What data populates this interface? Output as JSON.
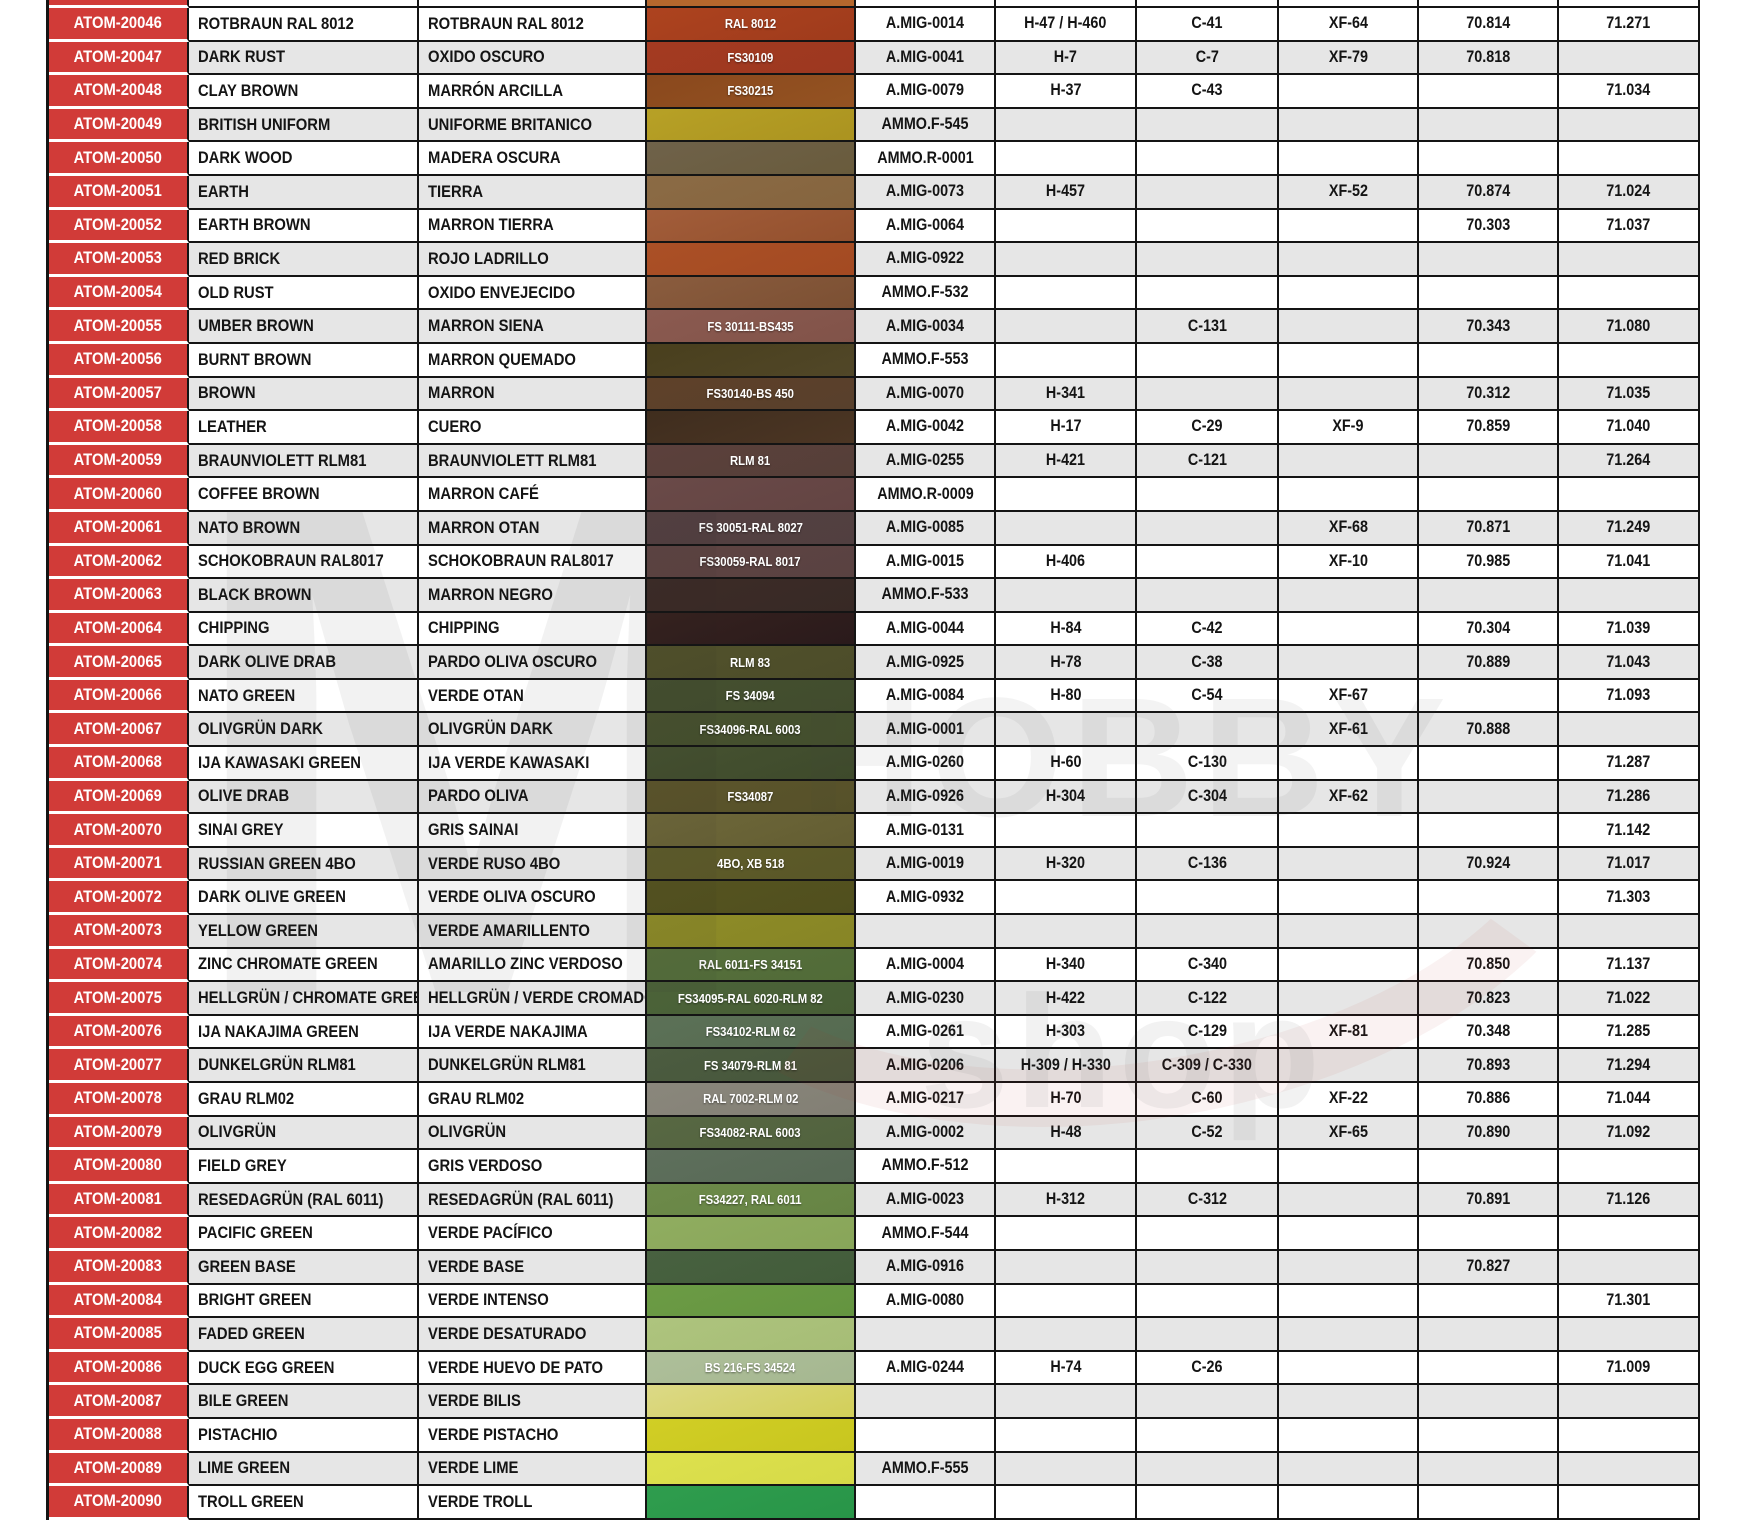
{
  "accent": {
    "code_red": "#d13b38",
    "row_white": "#ffffff",
    "row_gray": "#e6e6e6",
    "border_dark": "#141414",
    "text_dark": "#141414",
    "swatch_text": "#ffffff",
    "partial_top_swatch": "#b5672d"
  },
  "watermark": {
    "letter": "M",
    "word1": "HOBBY",
    "word2": "shop"
  },
  "table": {
    "rows": [
      {
        "code": "ATOM-20046",
        "en": "ROTBRAUN RAL 8012",
        "es": "ROTBRAUN RAL 8012",
        "ref": "RAL 8012",
        "c1": "#ad431f",
        "c2": "#9f3b1c",
        "amig": "A.MIG-0014",
        "h": "H-47 / H-460",
        "c": "C-41",
        "xf": "XF-64",
        "v70": "70.814",
        "v71": "71.271"
      },
      {
        "code": "ATOM-20047",
        "en": "DARK RUST",
        "es": "OXIDO OSCURO",
        "ref": "FS30109",
        "c1": "#a43a21",
        "c2": "#9c3820",
        "amig": "A.MIG-0041",
        "h": "H-7",
        "c": "C-7",
        "xf": "XF-79",
        "v70": "70.818",
        "v71": ""
      },
      {
        "code": "ATOM-20048",
        "en": "CLAY BROWN",
        "es": "MARRÓN ARCILLA",
        "ref": "FS30215",
        "c1": "#8a481d",
        "c2": "#945322",
        "amig": "A.MIG-0079",
        "h": "H-37",
        "c": "C-43",
        "xf": "",
        "v70": "",
        "v71": "71.034"
      },
      {
        "code": "ATOM-20049",
        "en": "BRITISH UNIFORM",
        "es": "UNIFORME BRITANICO",
        "ref": "",
        "c1": "#b7a126",
        "c2": "#ab9320",
        "amig": "AMMO.F-545",
        "h": "",
        "c": "",
        "xf": "",
        "v70": "",
        "v71": ""
      },
      {
        "code": "ATOM-20050",
        "en": "DARK WOOD",
        "es": "MADERA OSCURA",
        "ref": "",
        "c1": "#6f624a",
        "c2": "#695b3c",
        "amig": "AMMO.R-0001",
        "h": "",
        "c": "",
        "xf": "",
        "v70": "",
        "v71": ""
      },
      {
        "code": "ATOM-20051",
        "en": "EARTH",
        "es": "TIERRA",
        "ref": "",
        "c1": "#8b6b45",
        "c2": "#85643e",
        "amig": "A.MIG-0073",
        "h": "H-457",
        "c": "",
        "xf": "XF-52",
        "v70": "70.874",
        "v71": "71.024"
      },
      {
        "code": "ATOM-20052",
        "en": "EARTH BROWN",
        "es": "MARRON TIERRA",
        "ref": "",
        "c1": "#a25d3a",
        "c2": "#93502d",
        "amig": "A.MIG-0064",
        "h": "",
        "c": "",
        "xf": "",
        "v70": "70.303",
        "v71": "71.037"
      },
      {
        "code": "ATOM-20053",
        "en": "RED BRICK",
        "es": "ROJO LADRILLO",
        "ref": "",
        "c1": "#ab5026",
        "c2": "#a34a22",
        "amig": "A.MIG-0922",
        "h": "",
        "c": "",
        "xf": "",
        "v70": "",
        "v71": ""
      },
      {
        "code": "ATOM-20054",
        "en": "OLD RUST",
        "es": "OXIDO ENVEJECIDO",
        "ref": "",
        "c1": "#8a5c3e",
        "c2": "#7c5033",
        "amig": "AMMO.F-532",
        "h": "",
        "c": "",
        "xf": "",
        "v70": "",
        "v71": ""
      },
      {
        "code": "ATOM-20055",
        "en": "UMBER BROWN",
        "es": "MARRON SIENA",
        "ref": "FS 30111-BS435",
        "c1": "#8b5a50",
        "c2": "#815349",
        "amig": "A.MIG-0034",
        "h": "",
        "c": "C-131",
        "xf": "",
        "v70": "70.343",
        "v71": "71.080"
      },
      {
        "code": "ATOM-20056",
        "en": "BURNT BROWN",
        "es": "MARRON QUEMADO",
        "ref": "",
        "c1": "#493f1d",
        "c2": "#514728",
        "amig": "AMMO.F-553",
        "h": "",
        "c": "",
        "xf": "",
        "v70": "",
        "v71": ""
      },
      {
        "code": "ATOM-20057",
        "en": "BROWN",
        "es": "MARRON",
        "ref": "FS30140-BS 450",
        "c1": "#5f4129",
        "c2": "#58402c",
        "amig": "A.MIG-0070",
        "h": "H-341",
        "c": "",
        "xf": "",
        "v70": "70.312",
        "v71": "71.035"
      },
      {
        "code": "ATOM-20058",
        "en": "LEATHER",
        "es": "CUERO",
        "ref": "",
        "c1": "#3f2d1e",
        "c2": "#4c3624",
        "amig": "A.MIG-0042",
        "h": "H-17",
        "c": "C-29",
        "xf": "XF-9",
        "v70": "70.859",
        "v71": "71.040"
      },
      {
        "code": "ATOM-20059",
        "en": "BRAUNVIOLETT RLM81",
        "es": "BRAUNVIOLETT RLM81",
        "ref": "RLM 81",
        "c1": "#5c403c",
        "c2": "#553f38",
        "amig": "A.MIG-0255",
        "h": "H-421",
        "c": "C-121",
        "xf": "",
        "v70": "",
        "v71": "71.264"
      },
      {
        "code": "ATOM-20060",
        "en": "COFFEE BROWN",
        "es": "MARRON CAFÉ",
        "ref": "",
        "c1": "#6a4a48",
        "c2": "#634443",
        "amig": "AMMO.R-0009",
        "h": "",
        "c": "",
        "xf": "",
        "v70": "",
        "v71": ""
      },
      {
        "code": "ATOM-20061",
        "en": "NATO BROWN",
        "es": "MARRON OTAN",
        "ref": "FS 30051-RAL 8027",
        "c1": "#554142",
        "c2": "#513f40",
        "amig": "A.MIG-0085",
        "h": "",
        "c": "",
        "xf": "XF-68",
        "v70": "70.871",
        "v71": "71.249"
      },
      {
        "code": "ATOM-20062",
        "en": "SCHOKOBRAUN RAL8017",
        "es": "SCHOKOBRAUN RAL8017",
        "ref": "FS30059-RAL 8017",
        "c1": "#5f4443",
        "c2": "#594241",
        "amig": "A.MIG-0015",
        "h": "H-406",
        "c": "",
        "xf": "XF-10",
        "v70": "70.985",
        "v71": "71.041"
      },
      {
        "code": "ATOM-20063",
        "en": "BLACK BROWN",
        "es": "MARRON NEGRO",
        "ref": "",
        "c1": "#3d2c27",
        "c2": "#372925",
        "amig": "AMMO.F-533",
        "h": "",
        "c": "",
        "xf": "",
        "v70": "",
        "v71": ""
      },
      {
        "code": "ATOM-20064",
        "en": "CHIPPING",
        "es": "CHIPPING",
        "ref": "",
        "c1": "#36221f",
        "c2": "#2a1a1b",
        "amig": "A.MIG-0044",
        "h": "H-84",
        "c": "C-42",
        "xf": "",
        "v70": "70.304",
        "v71": "71.039"
      },
      {
        "code": "ATOM-20065",
        "en": "DARK OLIVE DRAB",
        "es": "PARDO OLIVA OSCURO",
        "ref": "RLM 83",
        "c1": "#52522c",
        "c2": "#4c4c29",
        "amig": "A.MIG-0925",
        "h": "H-78",
        "c": "C-38",
        "xf": "",
        "v70": "70.889",
        "v71": "71.043"
      },
      {
        "code": "ATOM-20066",
        "en": "NATO GREEN",
        "es": "VERDE OTAN",
        "ref": "FS 34094",
        "c1": "#455030",
        "c2": "#414c2d",
        "amig": "A.MIG-0084",
        "h": "H-80",
        "c": "C-54",
        "xf": "XF-67",
        "v70": "",
        "v71": "71.093"
      },
      {
        "code": "ATOM-20067",
        "en": "OLIVGRÜN DARK",
        "es": "OLIVGRÜN DARK",
        "ref": "FS34096-RAL 6003",
        "c1": "#48522f",
        "c2": "#434e2d",
        "amig": "A.MIG-0001",
        "h": "",
        "c": "",
        "xf": "XF-61",
        "v70": "70.888",
        "v71": ""
      },
      {
        "code": "ATOM-20068",
        "en": "IJA KAWASAKI GREEN",
        "es": "IJA VERDE KAWASAKI",
        "ref": "",
        "c1": "#465231",
        "c2": "#3e4a2b",
        "amig": "A.MIG-0260",
        "h": "H-60",
        "c": "C-130",
        "xf": "",
        "v70": "",
        "v71": "71.287"
      },
      {
        "code": "ATOM-20069",
        "en": "OLIVE DRAB",
        "es": "PARDO OLIVA",
        "ref": "FS34087",
        "c1": "#5c552c",
        "c2": "#565129",
        "amig": "A.MIG-0926",
        "h": "H-304",
        "c": "C-304",
        "xf": "XF-62",
        "v70": "",
        "v71": "71.286"
      },
      {
        "code": "ATOM-20070",
        "en": "SINAI GREY",
        "es": "GRIS SAINAI",
        "ref": "",
        "c1": "#6e683a",
        "c2": "#635d32",
        "amig": "A.MIG-0131",
        "h": "",
        "c": "",
        "xf": "",
        "v70": "",
        "v71": "71.142"
      },
      {
        "code": "ATOM-20071",
        "en": "RUSSIAN GREEN 4BO",
        "es": "VERDE RUSO 4BO",
        "ref": "4BO, XB 518",
        "c1": "#5f5c2a",
        "c2": "#595727",
        "amig": "A.MIG-0019",
        "h": "H-320",
        "c": "C-136",
        "xf": "",
        "v70": "70.924",
        "v71": "71.017"
      },
      {
        "code": "ATOM-20072",
        "en": "DARK OLIVE GREEN",
        "es": "VERDE OLIVA OSCURO",
        "ref": "",
        "c1": "#565420",
        "c2": "#504f1e",
        "amig": "A.MIG-0932",
        "h": "",
        "c": "",
        "xf": "",
        "v70": "",
        "v71": "71.303"
      },
      {
        "code": "ATOM-20073",
        "en": "YELLOW GREEN",
        "es": "VERDE AMARILLENTO",
        "ref": "",
        "c1": "#8e8c28",
        "c2": "#878525",
        "amig": "",
        "h": "",
        "c": "",
        "xf": "",
        "v70": "",
        "v71": ""
      },
      {
        "code": "ATOM-20074",
        "en": "ZINC CHROMATE GREEN",
        "es": "AMARILLO ZINC VERDOSO",
        "ref": "RAL 6011-FS 34151",
        "c1": "#57703c",
        "c2": "#516b38",
        "amig": "A.MIG-0004",
        "h": "H-340",
        "c": "C-340",
        "xf": "",
        "v70": "70.850",
        "v71": "71.137"
      },
      {
        "code": "ATOM-20075",
        "en": "HELLGRÜN / CHROMATE GREEN",
        "es": "HELLGRÜN / VERDE CROMADO",
        "ref": "FS34095-RAL 6020-RLM 82",
        "c1": "#4c6339",
        "c2": "#475e35",
        "amig": "A.MIG-0230",
        "h": "H-422",
        "c": "C-122",
        "xf": "",
        "v70": "70.823",
        "v71": "71.022"
      },
      {
        "code": "ATOM-20076",
        "en": "IJA NAKAJIMA GREEN",
        "es": "IJA VERDE NAKAJIMA",
        "ref": "FS34102-RLM 62",
        "c1": "#5c7157",
        "c2": "#556a50",
        "amig": "A.MIG-0261",
        "h": "H-303",
        "c": "C-129",
        "xf": "XF-81",
        "v70": "70.348",
        "v71": "71.285"
      },
      {
        "code": "ATOM-20077",
        "en": "DUNKELGRÜN RLM81",
        "es": "DUNKELGRÜN RLM81",
        "ref": "FS 34079-RLM 81",
        "c1": "#4c5c40",
        "c2": "#46563b",
        "amig": "A.MIG-0206",
        "h": "H-309 / H-330",
        "c": "C-309 / C-330",
        "xf": "",
        "v70": "70.893",
        "v71": "71.294"
      },
      {
        "code": "ATOM-20078",
        "en": "GRAU RLM02",
        "es": "GRAU RLM02",
        "ref": "RAL 7002-RLM 02",
        "c1": "#8a877c",
        "c2": "#827f74",
        "amig": "A.MIG-0217",
        "h": "H-70",
        "c": "C-60",
        "xf": "XF-22",
        "v70": "70.886",
        "v71": "71.044"
      },
      {
        "code": "ATOM-20079",
        "en": "OLIVGRÜN",
        "es": "OLIVGRÜN",
        "ref": "FS34082-RAL 6003",
        "c1": "#586843",
        "c2": "#51623e",
        "amig": "A.MIG-0002",
        "h": "H-48",
        "c": "C-52",
        "xf": "XF-65",
        "v70": "70.890",
        "v71": "71.092"
      },
      {
        "code": "ATOM-20080",
        "en": "FIELD GREY",
        "es": "GRIS VERDOSO",
        "ref": "",
        "c1": "#5e6f5c",
        "c2": "#576955",
        "amig": "AMMO.F-512",
        "h": "",
        "c": "",
        "xf": "",
        "v70": "",
        "v71": ""
      },
      {
        "code": "ATOM-20081",
        "en": "RESEDAGRÜN (RAL 6011)",
        "es": "RESEDAGRÜN (RAL 6011)",
        "ref": "FS34227, RAL 6011",
        "c1": "#6d8a4a",
        "c2": "#668444",
        "amig": "A.MIG-0023",
        "h": "H-312",
        "c": "C-312",
        "xf": "",
        "v70": "70.891",
        "v71": "71.126"
      },
      {
        "code": "ATOM-20082",
        "en": "PACIFIC GREEN",
        "es": "VERDE PACÍFICO",
        "ref": "",
        "c1": "#90ad60",
        "c2": "#88a559",
        "amig": "AMMO.F-544",
        "h": "",
        "c": "",
        "xf": "",
        "v70": "",
        "v71": ""
      },
      {
        "code": "ATOM-20083",
        "en": "GREEN BASE",
        "es": "VERDE BASE",
        "ref": "",
        "c1": "#486140",
        "c2": "#425c3a",
        "amig": "A.MIG-0916",
        "h": "",
        "c": "",
        "xf": "",
        "v70": "70.827",
        "v71": ""
      },
      {
        "code": "ATOM-20084",
        "en": "BRIGHT GREEN",
        "es": "VERDE INTENSO",
        "ref": "",
        "c1": "#6c9b45",
        "c2": "#649440",
        "amig": "A.MIG-0080",
        "h": "",
        "c": "",
        "xf": "",
        "v70": "",
        "v71": "71.301"
      },
      {
        "code": "ATOM-20085",
        "en": "FADED GREEN",
        "es": "VERDE DESATURADO",
        "ref": "",
        "c1": "#aec47e",
        "c2": "#a6bd76",
        "amig": "",
        "h": "",
        "c": "",
        "xf": "",
        "v70": "",
        "v71": ""
      },
      {
        "code": "ATOM-20086",
        "en": "DUCK EGG GREEN",
        "es": "VERDE HUEVO DE PATO",
        "ref": "BS 216-FS 34524",
        "c1": "#aebf9a",
        "c2": "#a5b790",
        "amig": "A.MIG-0244",
        "h": "H-74",
        "c": "C-26",
        "xf": "",
        "v70": "",
        "v71": "71.009"
      },
      {
        "code": "ATOM-20087",
        "en": "BILE GREEN",
        "es": "VERDE BILIS",
        "ref": "",
        "c1": "#dcd987",
        "c2": "#d2cf58",
        "amig": "",
        "h": "",
        "c": "",
        "xf": "",
        "v70": "",
        "v71": ""
      },
      {
        "code": "ATOM-20088",
        "en": "PISTACHIO",
        "es": "VERDE PISTACHO",
        "ref": "",
        "c1": "#d1ce25",
        "c2": "#c8c61f",
        "amig": "",
        "h": "",
        "c": "",
        "xf": "",
        "v70": "",
        "v71": ""
      },
      {
        "code": "ATOM-20089",
        "en": "LIME GREEN",
        "es": "VERDE LIME",
        "ref": "",
        "c1": "#dde14e",
        "c2": "#d6da47",
        "amig": "AMMO.F-555",
        "h": "",
        "c": "",
        "xf": "",
        "v70": "",
        "v71": ""
      },
      {
        "code": "ATOM-20090",
        "en": "TROLL GREEN",
        "es": "VERDE TROLL",
        "ref": "",
        "c1": "#2f9d4e",
        "c2": "#289548",
        "amig": "",
        "h": "",
        "c": "",
        "xf": "",
        "v70": "",
        "v71": ""
      }
    ]
  }
}
